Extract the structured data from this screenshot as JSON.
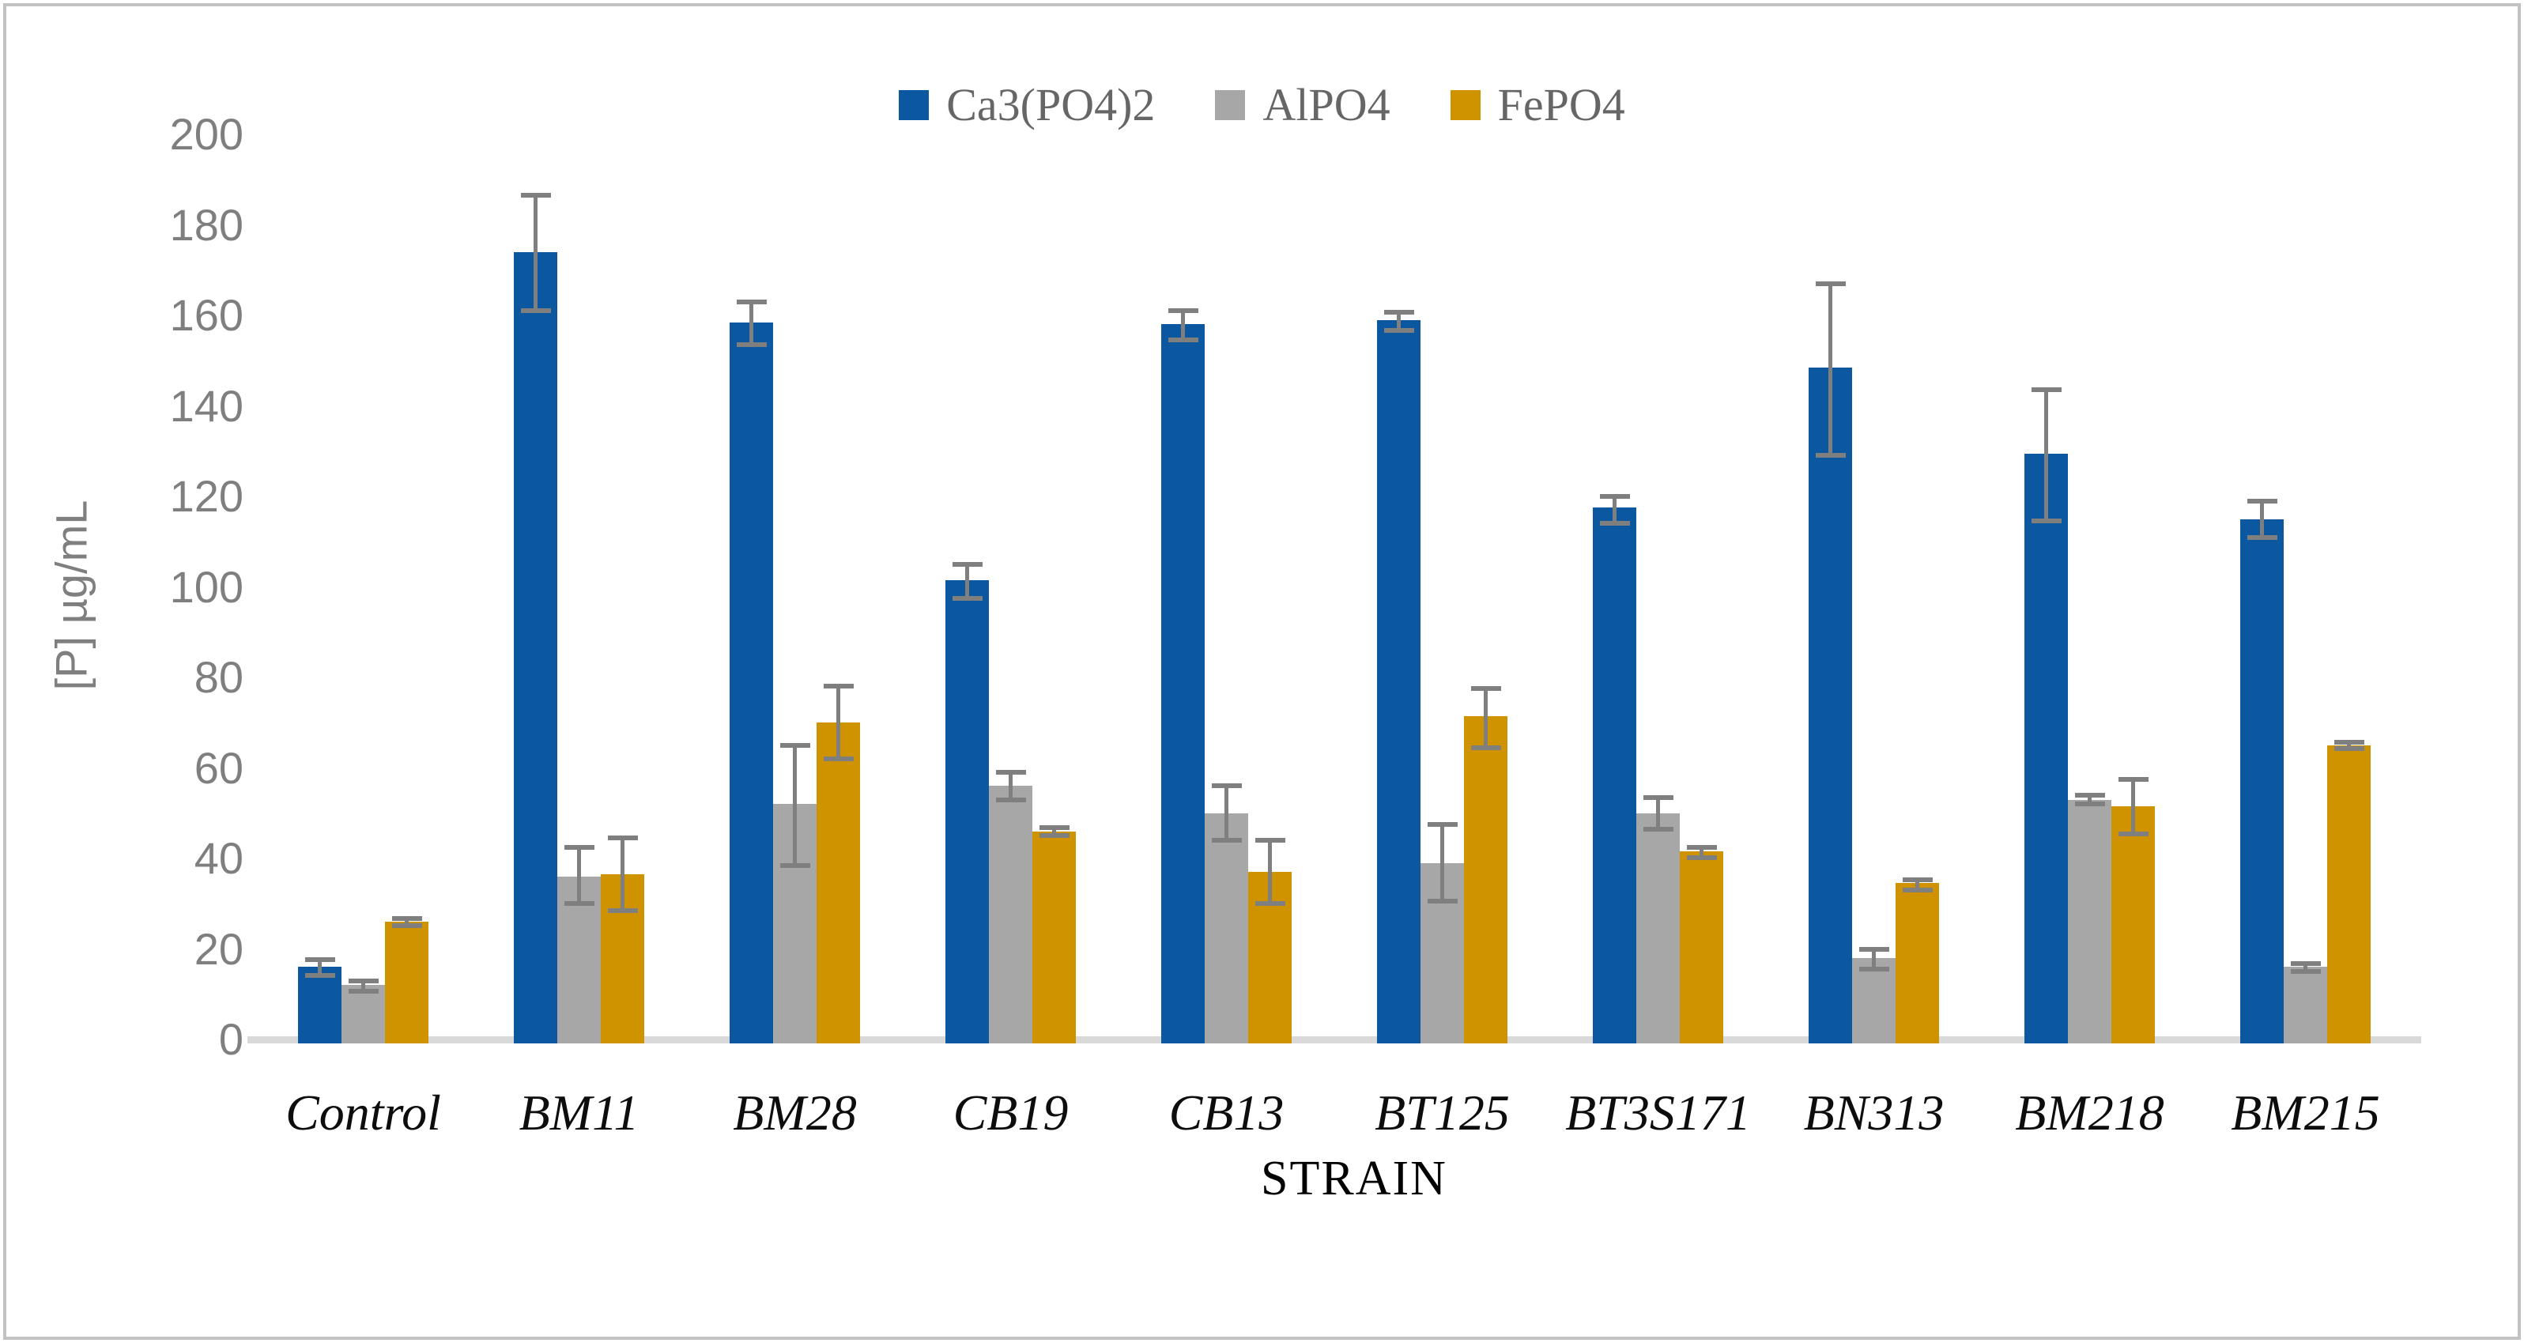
{
  "chart_data": {
    "type": "bar",
    "title": "",
    "xlabel": "STRAIN",
    "ylabel": "[P] µg/mL",
    "ylim": [
      0,
      200
    ],
    "ytick_step": 20,
    "grid": false,
    "legend_position": "top-center",
    "error_bars": true,
    "categories": [
      "Control",
      "BM11",
      "BM28",
      "CB19",
      "CB13",
      "BT125",
      "BT3S171",
      "BN313",
      "BM218",
      "BM215"
    ],
    "series": [
      {
        "name": "Ca3(PO4)2",
        "color": "#0b57a0",
        "values": [
          16,
          174,
          158.5,
          101.5,
          158,
          159,
          117.5,
          148.5,
          129.5,
          115
        ],
        "error_plus": [
          1.6,
          12.5,
          4.5,
          3.5,
          3,
          1.7,
          2.5,
          18.5,
          14,
          4
        ],
        "error_minus": [
          1.8,
          13,
          5,
          4,
          3.5,
          2.4,
          3.5,
          19.5,
          15,
          4
        ]
      },
      {
        "name": "AlPO4",
        "color": "#a7a7a7",
        "values": [
          12,
          36,
          52,
          56,
          50,
          39,
          50,
          18,
          53,
          16
        ],
        "error_plus": [
          1.0,
          6.5,
          13,
          3,
          6,
          8.5,
          3.5,
          2,
          1,
          0.8
        ],
        "error_minus": [
          1.3,
          6,
          13.5,
          3,
          6,
          8.5,
          3.5,
          2.5,
          1,
          0.9
        ]
      },
      {
        "name": "FePO4",
        "color": "#d09300",
        "values": [
          26,
          36.5,
          70,
          46,
          37,
          71.5,
          41.5,
          34.5,
          51.5,
          65
        ],
        "error_plus": [
          0.8,
          8,
          8,
          0.8,
          7,
          6,
          1,
          0.8,
          6,
          0.6
        ],
        "error_minus": [
          0.9,
          8,
          8,
          1,
          7,
          7,
          1.3,
          1.5,
          6,
          0.8
        ]
      }
    ],
    "colors": {
      "error_bar": "#7f7f7f",
      "axis_line": "#d9d9d9",
      "tick_text": "#7f7f7f",
      "category_text": "#0d0d0d",
      "legend_text": "#666666",
      "frame": "#c2c2c2"
    }
  }
}
